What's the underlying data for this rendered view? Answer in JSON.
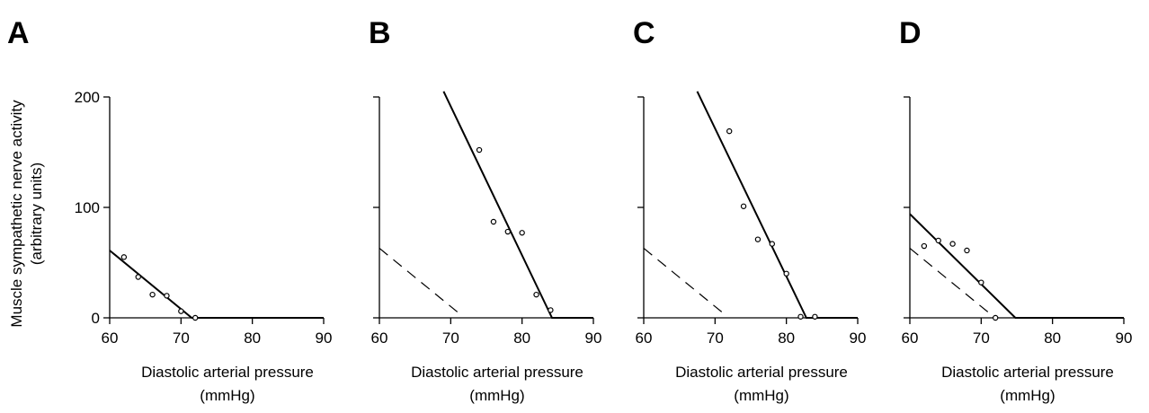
{
  "chart_data": [
    {
      "type": "scatter",
      "panel": "A",
      "xlabel": "Diastolic arterial pressure",
      "xunit": "(mmHg)",
      "ylabel": "Muscle sympathetic nerve activity",
      "yunit": "(arbitrary units)",
      "xlim": [
        60,
        90
      ],
      "ylim": [
        0,
        200
      ],
      "xticks": [
        60,
        70,
        80,
        90
      ],
      "yticks": [
        0,
        100,
        200
      ],
      "show_yticklabels": true,
      "points": [
        [
          62,
          55
        ],
        [
          64,
          37
        ],
        [
          66,
          21
        ],
        [
          68,
          20
        ],
        [
          70,
          6
        ],
        [
          72,
          0
        ]
      ],
      "fit_line": [
        [
          60,
          61
        ],
        [
          71.5,
          0
        ],
        [
          90,
          0
        ]
      ],
      "reference_line": null
    },
    {
      "type": "scatter",
      "panel": "B",
      "xlabel": "Diastolic arterial pressure",
      "xunit": "(mmHg)",
      "xlim": [
        60,
        90
      ],
      "ylim": [
        0,
        200
      ],
      "xticks": [
        60,
        70,
        80,
        90
      ],
      "yticks": [
        0,
        100,
        200
      ],
      "show_yticklabels": false,
      "points": [
        [
          74,
          152
        ],
        [
          76,
          87
        ],
        [
          78,
          78
        ],
        [
          80,
          77
        ],
        [
          82,
          21
        ],
        [
          84,
          7
        ]
      ],
      "fit_line": [
        [
          69,
          205
        ],
        [
          84.2,
          0
        ],
        [
          90,
          0
        ]
      ],
      "reference_line": [
        [
          60,
          63
        ],
        [
          71,
          5
        ]
      ]
    },
    {
      "type": "scatter",
      "panel": "C",
      "xlabel": "Diastolic arterial pressure",
      "xunit": "(mmHg)",
      "xlim": [
        60,
        90
      ],
      "ylim": [
        0,
        200
      ],
      "xticks": [
        60,
        70,
        80,
        90
      ],
      "yticks": [
        0,
        100,
        200
      ],
      "show_yticklabels": false,
      "points": [
        [
          72,
          169
        ],
        [
          74,
          101
        ],
        [
          76,
          71
        ],
        [
          78,
          67
        ],
        [
          80,
          40
        ],
        [
          82,
          1
        ],
        [
          84,
          1
        ]
      ],
      "fit_line": [
        [
          67.5,
          205
        ],
        [
          82.8,
          0
        ],
        [
          90,
          0
        ]
      ],
      "reference_line": [
        [
          60,
          63
        ],
        [
          71,
          5
        ]
      ]
    },
    {
      "type": "scatter",
      "panel": "D",
      "xlabel": "Diastolic arterial pressure",
      "xunit": "(mmHg)",
      "xlim": [
        60,
        90
      ],
      "ylim": [
        0,
        200
      ],
      "xticks": [
        60,
        70,
        80,
        90
      ],
      "yticks": [
        0,
        100,
        200
      ],
      "show_yticklabels": false,
      "points": [
        [
          62,
          65
        ],
        [
          64,
          70
        ],
        [
          66,
          67
        ],
        [
          68,
          61
        ],
        [
          70,
          32
        ],
        [
          72,
          0
        ]
      ],
      "fit_line": [
        [
          60,
          94
        ],
        [
          74.8,
          0
        ],
        [
          90,
          0
        ]
      ],
      "reference_line": [
        [
          60,
          63
        ],
        [
          71,
          5
        ]
      ]
    }
  ]
}
